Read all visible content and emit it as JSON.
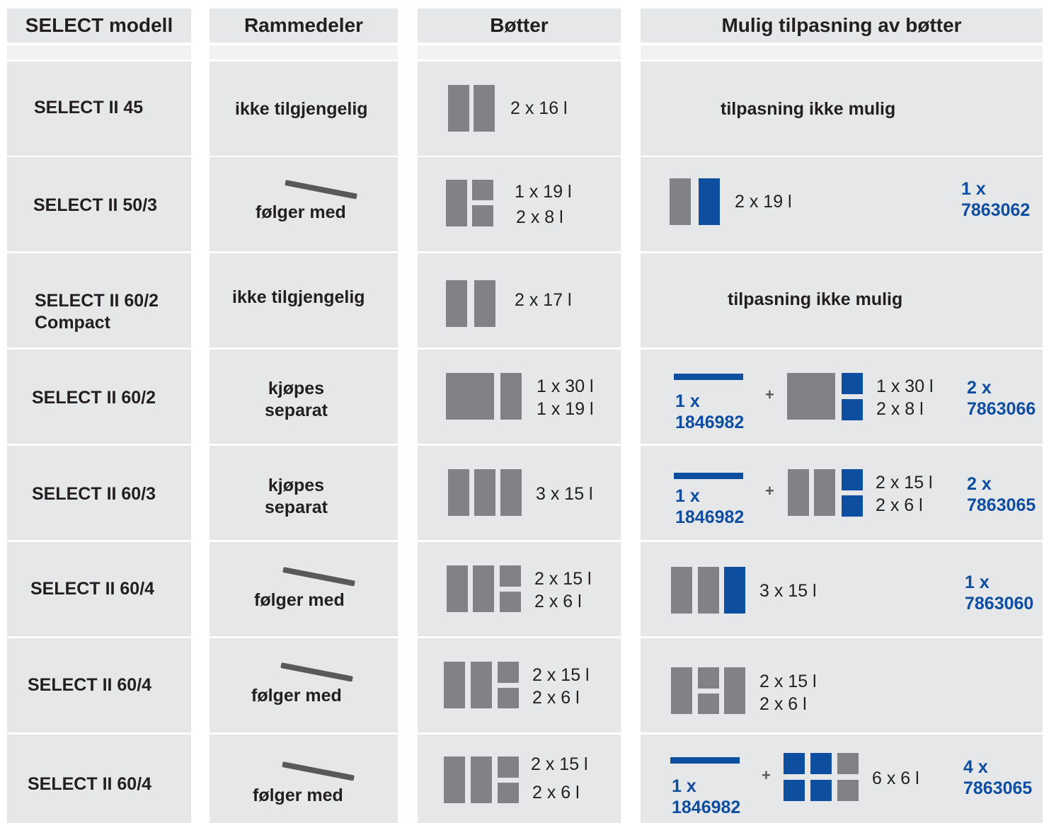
{
  "headers": {
    "model": "SELECT modell",
    "frame": "Rammedeler",
    "buckets": "Bøtter",
    "adapt": "Mulig tilpasning av bøtter"
  },
  "rows": [
    {
      "model": "SELECT II 45",
      "frame": "ikke tilgjengelig",
      "buckets": [
        "2 x 16 l"
      ],
      "adapt": "tilpasning ikke mulig"
    },
    {
      "model": "SELECT II 50/3",
      "frame": "følger med",
      "buckets": [
        "1 x 19 l",
        "2 x  8 l"
      ],
      "adapt_lines": [
        "2 x 19 l"
      ],
      "order": "1 x\n7863062"
    },
    {
      "model": "SELECT II 60/2\nCompact",
      "frame": "ikke tilgjengelig",
      "buckets": [
        "2 x 17 l"
      ],
      "adapt": "tilpasning ikke mulig"
    },
    {
      "model": "SELECT II 60/2",
      "frame": "kjøpes\nseparat",
      "buckets": [
        "1 x 30 l",
        "1 x 19 l"
      ],
      "rail_order": "1 x\n1846982",
      "adapt_lines": [
        "1 x 30 l",
        "2 x  8 l"
      ],
      "order": "2 x\n7863066"
    },
    {
      "model": "SELECT II 60/3",
      "frame": "kjøpes\nseparat",
      "buckets": [
        "3 x 15 l"
      ],
      "rail_order": "1 x\n1846982",
      "adapt_lines": [
        "2 x 15 l",
        "2 x  6 l"
      ],
      "order": "2 x\n7863065"
    },
    {
      "model": "SELECT II 60/4",
      "frame": "følger med",
      "buckets": [
        "2 x 15 l",
        "2 x 6 l"
      ],
      "adapt_lines": [
        "3 x 15 l"
      ],
      "order": "1 x\n7863060"
    },
    {
      "model": "SELECT II 60/4",
      "frame": "følger med",
      "buckets": [
        "2 x 15 l",
        "2 x  6 l"
      ],
      "adapt_lines": [
        "2 x 15 l",
        "2 x  6 l"
      ]
    },
    {
      "model": "SELECT II 60/4",
      "frame": "følger med",
      "buckets": [
        "2 x 15 l",
        "2 x  6 l"
      ],
      "rail_order": "1 x\n1846982",
      "adapt_lines": [
        "6 x  6 l"
      ],
      "order": "4 x\n7863065"
    }
  ],
  "plus_sign": "+",
  "icons": {
    "bucket_grey": "grey-bucket-icon",
    "bucket_blue": "blue-bucket-icon",
    "frame_rail": "frame-rail-icon"
  },
  "colors": {
    "cell_bg": "#e6e7e8",
    "bucket_grey": "#808285",
    "bucket_blue": "#0d4ea1",
    "rail": "#58595b",
    "text": "#231f20"
  }
}
